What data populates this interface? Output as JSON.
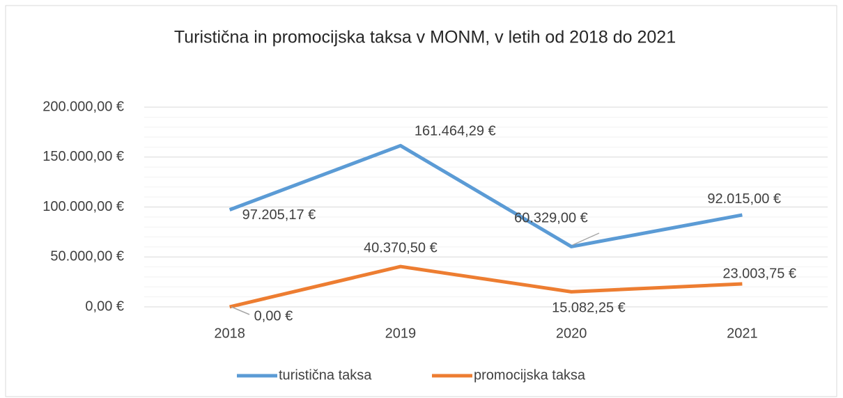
{
  "chart_data": {
    "type": "line",
    "title": "Turistična in promocijska taksa v MONM, v letih od 2018 do 2021",
    "categories": [
      "2018",
      "2019",
      "2020",
      "2021"
    ],
    "series": [
      {
        "name": "turistična taksa",
        "color": "#5b9bd5",
        "values": [
          97205.17,
          161464.29,
          60329.0,
          92015.0
        ],
        "value_labels": [
          "97.205,17 €",
          "161.464,29 €",
          "60.329,00 €",
          "92.015,00 €"
        ]
      },
      {
        "name": "promocijska taksa",
        "color": "#ed7d31",
        "values": [
          0,
          40370.5,
          15082.25,
          23003.75
        ],
        "value_labels": [
          "0,00 €",
          "40.370,50 €",
          "15.082,25 €",
          "23.003,75 €"
        ]
      }
    ],
    "ylim": [
      0,
      200000
    ],
    "yticks": [
      {
        "value": 0,
        "label": "0,00 €"
      },
      {
        "value": 50000,
        "label": "50.000,00 €"
      },
      {
        "value": 100000,
        "label": "100.000,00 €"
      },
      {
        "value": 150000,
        "label": "150.000,00 €"
      },
      {
        "value": 200000,
        "label": "200.000,00 €"
      }
    ],
    "minor_yticks": [
      10000,
      20000,
      30000,
      40000,
      60000,
      70000,
      80000,
      90000,
      110000,
      120000,
      130000,
      140000,
      160000,
      170000,
      180000,
      190000
    ],
    "grid": true,
    "legend": "bottom"
  }
}
